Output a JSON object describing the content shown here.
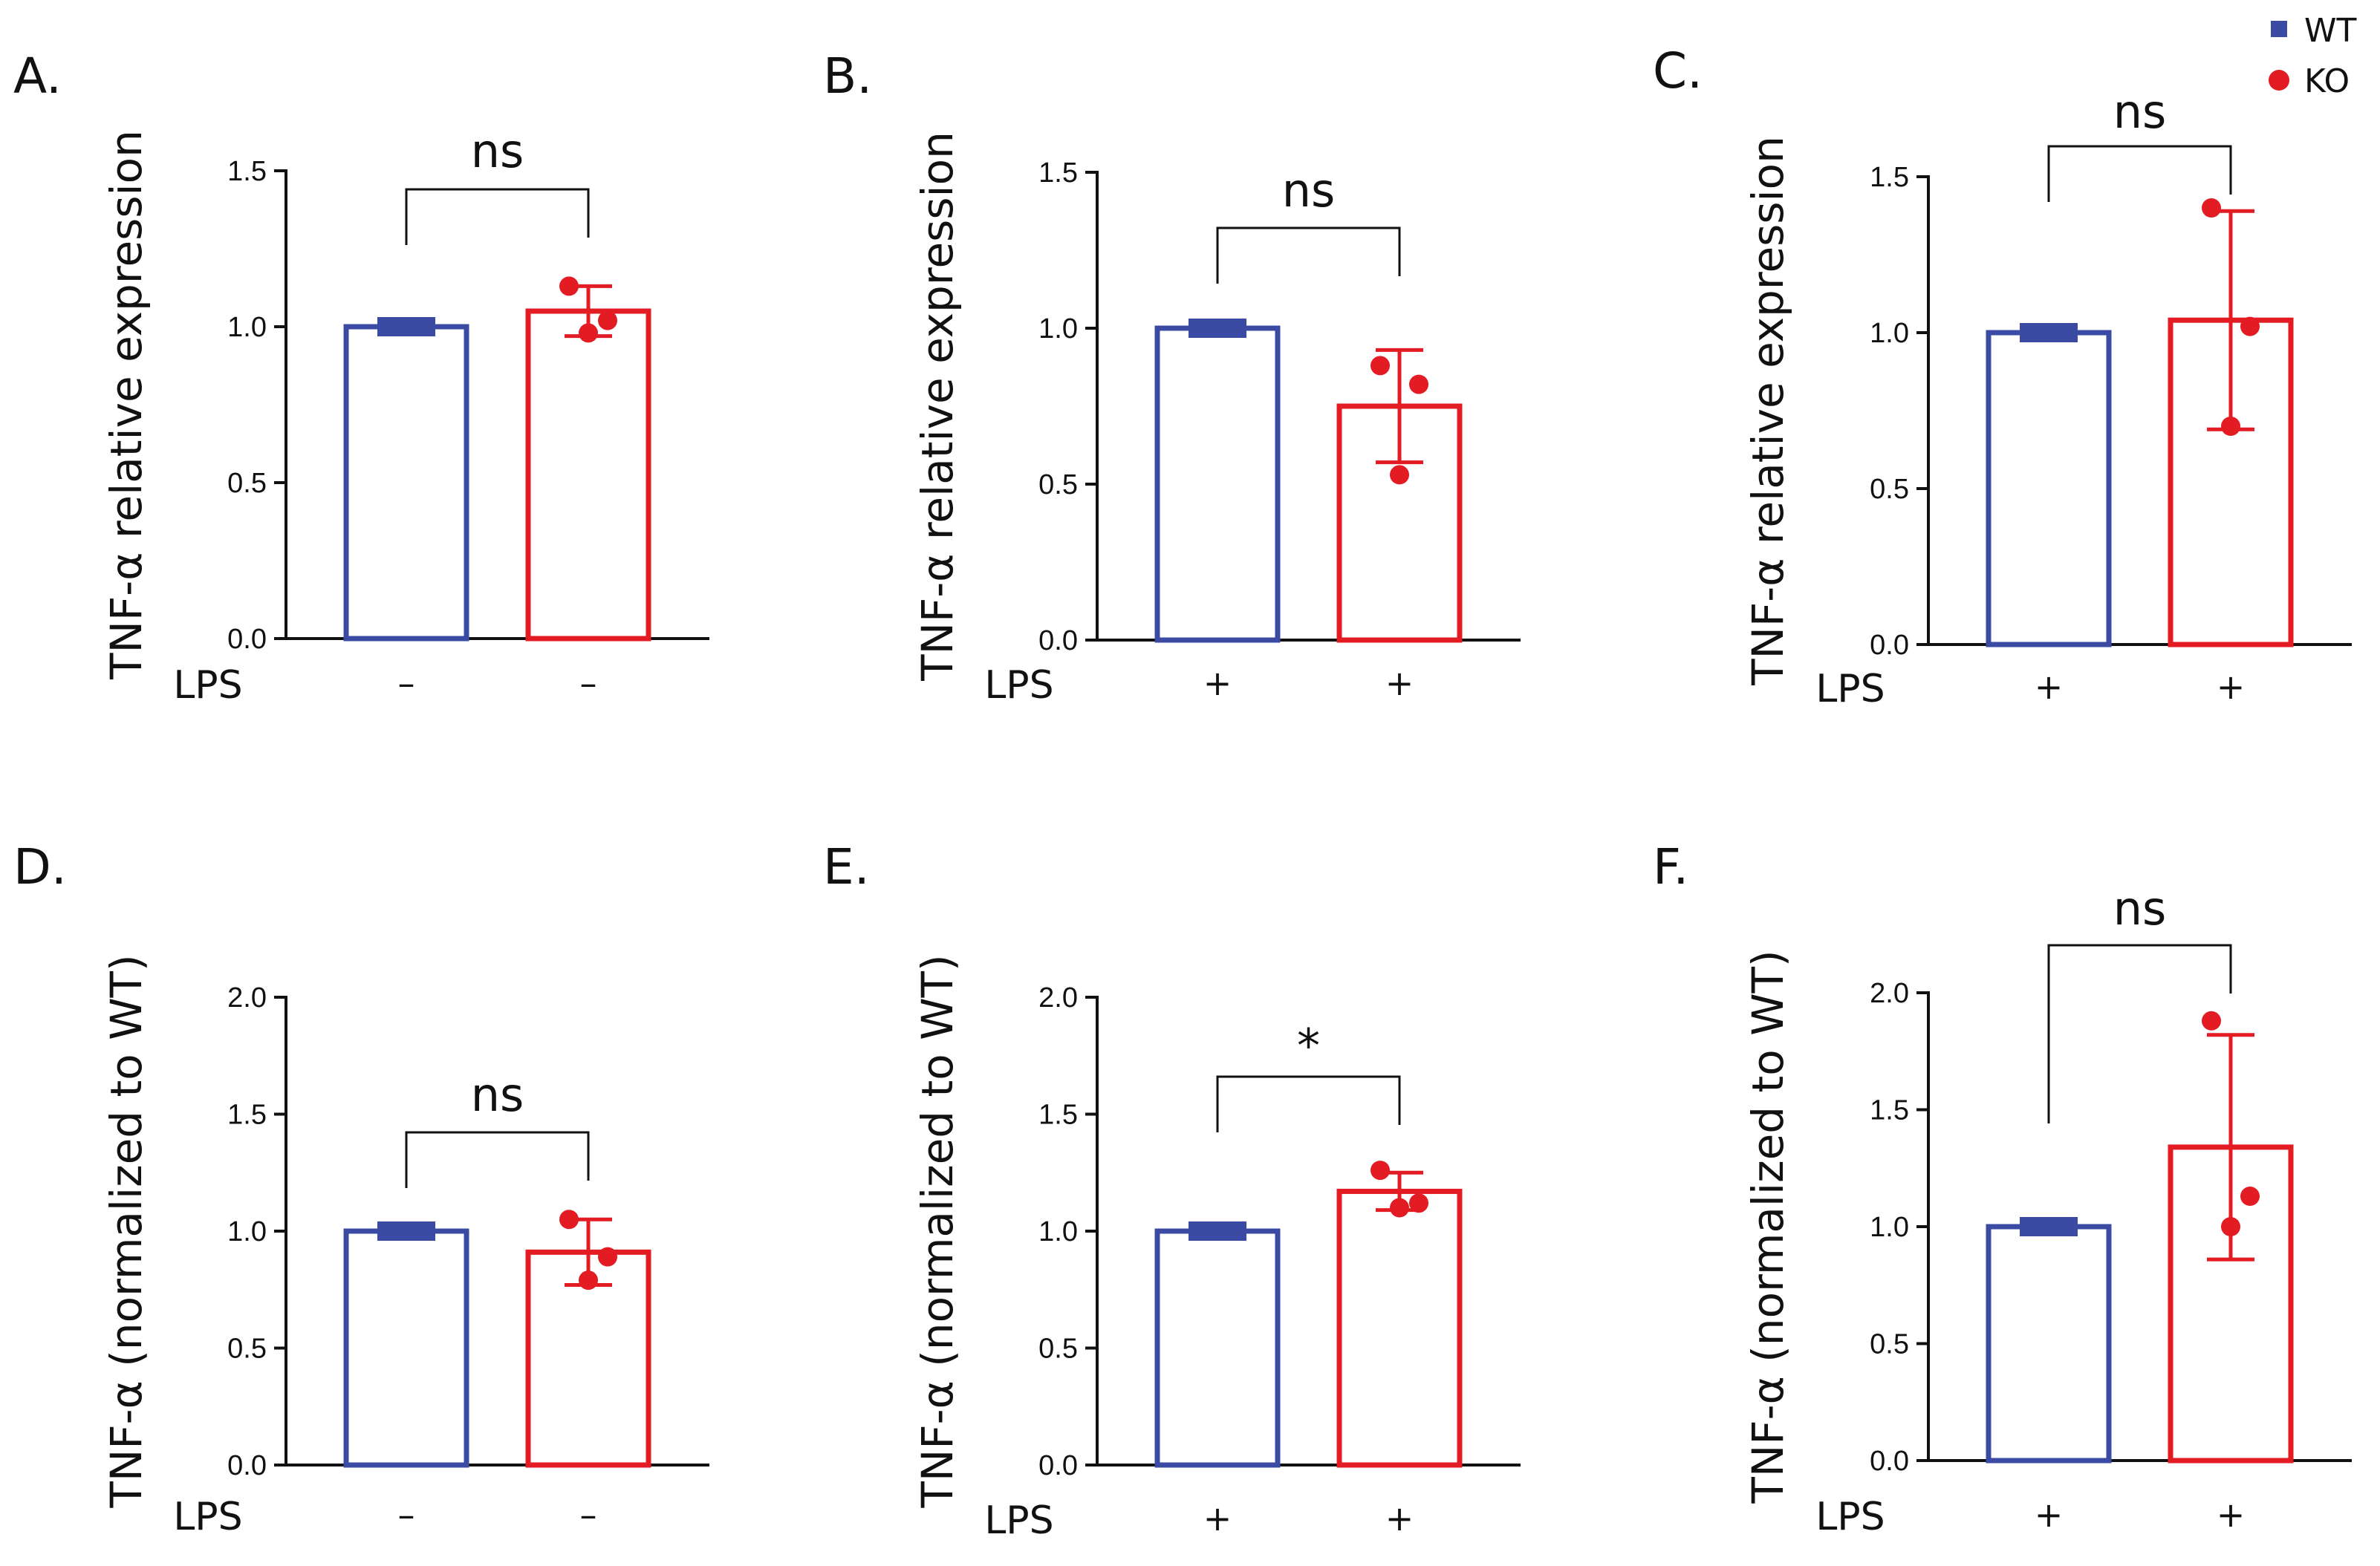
{
  "legend": {
    "entries": [
      {
        "label": "WT",
        "color": "#3b4ba3",
        "marker": "square"
      },
      {
        "label": "KO",
        "color": "#e31b23",
        "marker": "circle"
      }
    ]
  },
  "chart_data": [
    {
      "panel": "A.",
      "type": "bar",
      "ylabel": "TNF-α relative expression",
      "xlabel": "LPS",
      "ylim": [
        0,
        1.5
      ],
      "yticks": [
        "0.0",
        "0.5",
        "1.0",
        "1.5"
      ],
      "categories": [
        "WT",
        "KO"
      ],
      "conditions": [
        "–",
        "–"
      ],
      "values": [
        1.0,
        1.05
      ],
      "err": [
        0,
        0.08
      ],
      "points": [
        [
          1.0,
          1.0,
          1.0
        ],
        [
          1.13,
          0.98,
          1.02
        ]
      ],
      "significance": "ns"
    },
    {
      "panel": "B.",
      "type": "bar",
      "ylabel": "TNF-α relative expression",
      "xlabel": "LPS",
      "ylim": [
        0,
        1.5
      ],
      "yticks": [
        "0.0",
        "0.5",
        "1.0",
        "1.5"
      ],
      "categories": [
        "WT",
        "KO"
      ],
      "conditions": [
        "+",
        "+"
      ],
      "values": [
        1.0,
        0.75
      ],
      "err": [
        0,
        0.18
      ],
      "points": [
        [
          1.0,
          1.0,
          1.0
        ],
        [
          0.88,
          0.53,
          0.82
        ]
      ],
      "significance": "ns"
    },
    {
      "panel": "C.",
      "type": "bar",
      "ylabel": "TNF-α relative expression",
      "xlabel": "LPS",
      "ylim": [
        0,
        1.5
      ],
      "yticks": [
        "0.0",
        "0.5",
        "1.0",
        "1.5"
      ],
      "categories": [
        "WT",
        "KO"
      ],
      "conditions": [
        "+",
        "+"
      ],
      "values": [
        1.0,
        1.04
      ],
      "err": [
        0,
        0.35
      ],
      "points": [
        [
          1.0,
          1.0,
          1.0
        ],
        [
          1.4,
          0.7,
          1.02
        ]
      ],
      "significance": "ns"
    },
    {
      "panel": "D.",
      "type": "bar",
      "ylabel": "TNF-α (normalized to WT)",
      "xlabel": "LPS",
      "ylim": [
        0,
        2.0
      ],
      "yticks": [
        "0.0",
        "0.5",
        "1.0",
        "1.5",
        "2.0"
      ],
      "categories": [
        "WT",
        "KO"
      ],
      "conditions": [
        "–",
        "–"
      ],
      "values": [
        1.0,
        0.91
      ],
      "err": [
        0,
        0.14
      ],
      "points": [
        [
          1.0,
          1.0,
          1.0
        ],
        [
          1.05,
          0.79,
          0.89
        ]
      ],
      "significance": "ns"
    },
    {
      "panel": "E.",
      "type": "bar",
      "ylabel": "TNF-α (normalized to WT)",
      "xlabel": "LPS",
      "ylim": [
        0,
        2.0
      ],
      "yticks": [
        "0.0",
        "0.5",
        "1.0",
        "1.5",
        "2.0"
      ],
      "categories": [
        "WT",
        "KO"
      ],
      "conditions": [
        "+",
        "+"
      ],
      "values": [
        1.0,
        1.17
      ],
      "err": [
        0,
        0.08
      ],
      "points": [
        [
          1.0,
          1.0,
          1.0
        ],
        [
          1.26,
          1.1,
          1.12
        ]
      ],
      "significance": "*"
    },
    {
      "panel": "F.",
      "type": "bar",
      "ylabel": "TNF-α (normalized to WT)",
      "xlabel": "LPS",
      "ylim": [
        0,
        2.0
      ],
      "yticks": [
        "0.0",
        "0.5",
        "1.0",
        "1.5",
        "2.0"
      ],
      "categories": [
        "WT",
        "KO"
      ],
      "conditions": [
        "+",
        "+"
      ],
      "values": [
        1.0,
        1.34
      ],
      "err": [
        0,
        0.48
      ],
      "points": [
        [
          1.0,
          1.0,
          1.0
        ],
        [
          1.88,
          1.0,
          1.13
        ]
      ],
      "significance": "ns"
    }
  ]
}
